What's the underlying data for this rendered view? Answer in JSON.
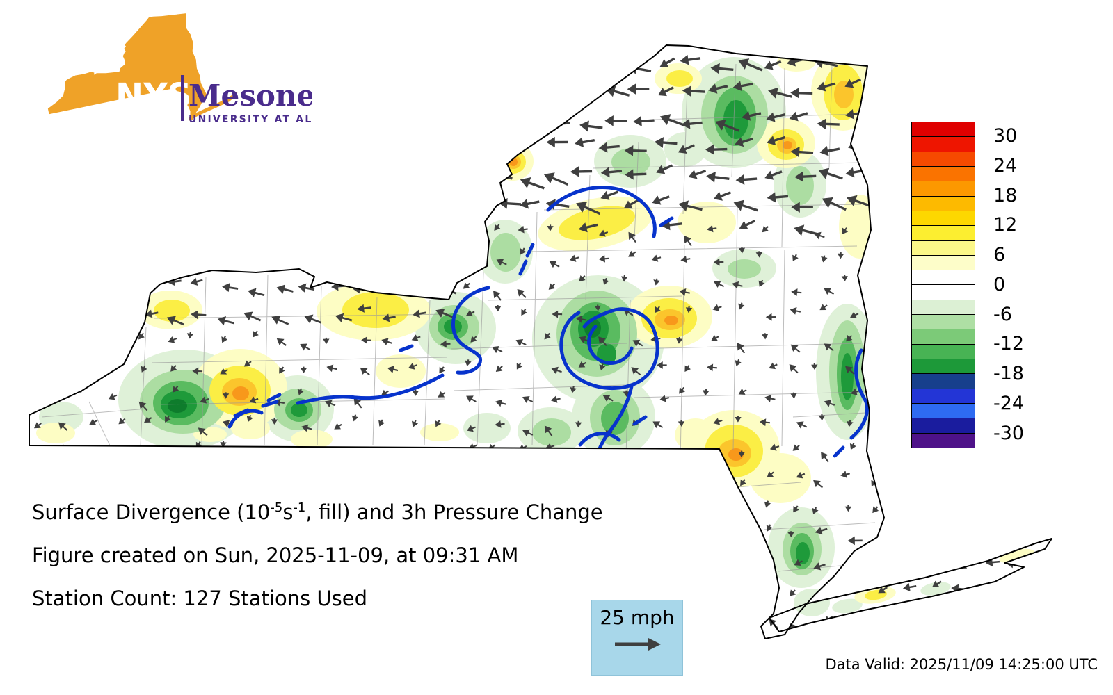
{
  "logo": {
    "acronym": "NYS",
    "name": "Mesonet",
    "institution": "UNIVERSITY AT ALBANY",
    "colors": {
      "state_fill": "#EFA228",
      "purple": "#4A2C8C"
    }
  },
  "caption": {
    "title_parts": {
      "p1": "Surface Divergence (10",
      "sup1": "-5",
      "p2": "s",
      "sup2": "-1",
      "p3": ", fill) and 3h Pressure Change"
    },
    "created_line": "Figure created on Sun, 2025-11-09, at 09:31 AM",
    "station_line": "Station Count: 127 Stations Used"
  },
  "wind_legend": {
    "label": "25 mph",
    "box_color": "#A8D7EA"
  },
  "footer": {
    "data_valid": "Data Valid: 2025/11/09 14:25:00 UTC"
  },
  "colorbar": {
    "labels": [
      "30",
      "24",
      "18",
      "12",
      "6",
      "0",
      "-6",
      "-12",
      "-18",
      "-24",
      "-30"
    ],
    "colors": [
      "#DF0000",
      "#EE1500",
      "#F64A00",
      "#FA7300",
      "#FC9800",
      "#FDBA00",
      "#FDD700",
      "#FCEE30",
      "#FBF788",
      "#FDFDC9",
      "#FFFFFF",
      "#FFFFFF",
      "#DCF0D4",
      "#AEDFA4",
      "#7CCA78",
      "#48B354",
      "#1D9939",
      "#173F8C",
      "#2335D6",
      "#2E6BF2",
      "#1A1C9E",
      "#4E1289"
    ]
  },
  "map": {
    "arrow_color": "#3F3F3F",
    "contour_color": "#0733CC",
    "border_color": "#000000",
    "county_line_color": "#9A9A9A"
  }
}
